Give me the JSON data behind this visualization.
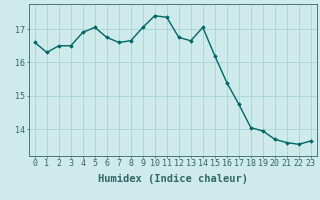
{
  "x": [
    0,
    1,
    2,
    3,
    4,
    5,
    6,
    7,
    8,
    9,
    10,
    11,
    12,
    13,
    14,
    15,
    16,
    17,
    18,
    19,
    20,
    21,
    22,
    23
  ],
  "y": [
    16.6,
    16.3,
    16.5,
    16.5,
    16.9,
    17.05,
    16.75,
    16.6,
    16.65,
    17.05,
    17.4,
    17.35,
    16.75,
    16.65,
    17.05,
    16.2,
    15.4,
    14.75,
    14.05,
    13.95,
    13.7,
    13.6,
    13.55,
    13.65
  ],
  "line_color": "#006666",
  "marker": "D",
  "marker_size": 1.8,
  "linewidth": 1.0,
  "xlabel": "Humidex (Indice chaleur)",
  "xlim": [
    -0.5,
    23.5
  ],
  "ylim": [
    13.2,
    17.75
  ],
  "yticks": [
    14,
    15,
    16,
    17
  ],
  "xticks": [
    0,
    1,
    2,
    3,
    4,
    5,
    6,
    7,
    8,
    9,
    10,
    11,
    12,
    13,
    14,
    15,
    16,
    17,
    18,
    19,
    20,
    21,
    22,
    23
  ],
  "bg_color": "#ceeaea",
  "grid_color": "#a8d4d4",
  "axis_color": "#336666",
  "tick_label_fontsize": 6,
  "xlabel_fontsize": 7.5
}
